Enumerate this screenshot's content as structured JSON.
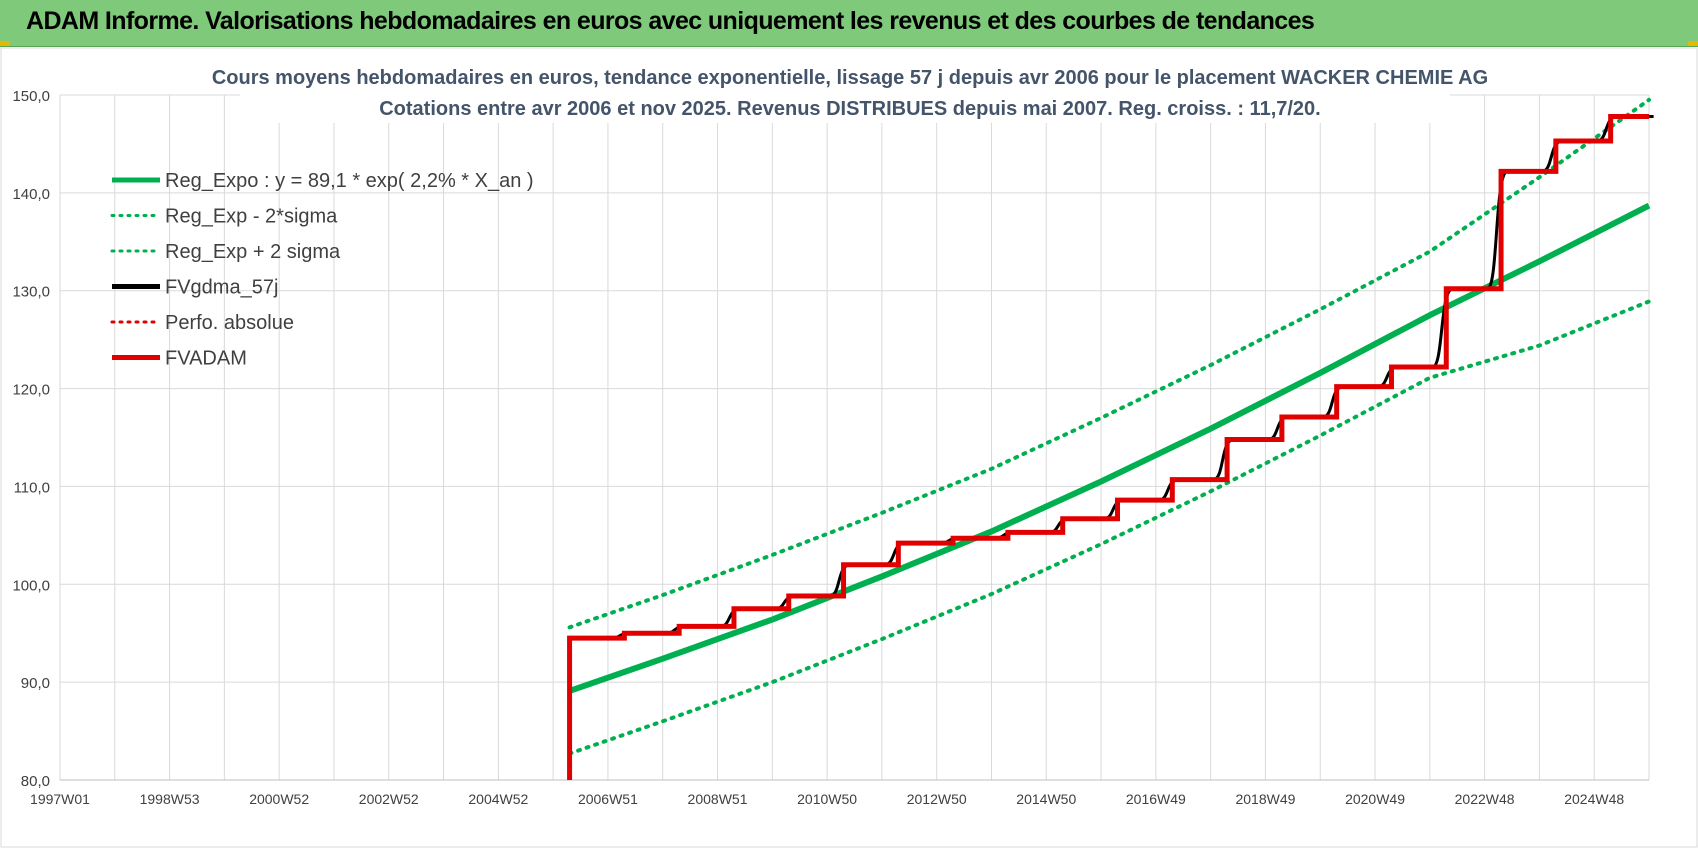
{
  "banner": {
    "title": "ADAM Informe. Valorisations hebdomadaires en euros avec uniquement les revenus et des courbes de tendances",
    "background_color": "#7ec97a"
  },
  "chart_data": {
    "type": "line",
    "title": "Cours moyens hebdomadaires en euros, tendance exponentielle, lissage 57 j depuis avr 2006 pour le placement WACKER CHEMIE AG",
    "subtitle": "Cotations entre avr 2006 et nov 2025. Revenus DISTRIBUES depuis mai 2007. Reg. croiss. : 11,7/20.",
    "xlabel": "",
    "ylabel": "",
    "ylim": [
      80,
      150
    ],
    "xlim": [
      1997.0,
      2026.0
    ],
    "grid": true,
    "legend_position": "top-left",
    "y_ticks": [
      "80,0",
      "90,0",
      "100,0",
      "110,0",
      "120,0",
      "130,0",
      "140,0",
      "150,0"
    ],
    "x_ticks": [
      {
        "label": "1997W01",
        "x": 1997.0
      },
      {
        "label": "1998W53",
        "x": 1999.0
      },
      {
        "label": "2000W52",
        "x": 2001.0
      },
      {
        "label": "2002W52",
        "x": 2003.0
      },
      {
        "label": "2004W52",
        "x": 2005.0
      },
      {
        "label": "2006W51",
        "x": 2007.0
      },
      {
        "label": "2008W51",
        "x": 2009.0
      },
      {
        "label": "2010W50",
        "x": 2011.0
      },
      {
        "label": "2012W50",
        "x": 2013.0
      },
      {
        "label": "2014W50",
        "x": 2015.0
      },
      {
        "label": "2016W49",
        "x": 2017.0
      },
      {
        "label": "2018W49",
        "x": 2019.0
      },
      {
        "label": "2020W49",
        "x": 2021.0
      },
      {
        "label": "2022W48",
        "x": 2023.0
      },
      {
        "label": "2024W48",
        "x": 2025.0
      }
    ],
    "series": [
      {
        "name": "Reg_Expo : y = 89,1 * exp( 2,2% *  X_an )",
        "color": "#00b050",
        "style": "solid",
        "width": 6,
        "x": [
          2006.3,
          2008.0,
          2010.0,
          2012.0,
          2014.0,
          2016.0,
          2018.0,
          2020.0,
          2022.0,
          2024.0,
          2026.0
        ],
        "y": [
          89.1,
          92.4,
          96.4,
          100.8,
          105.4,
          110.5,
          115.9,
          121.6,
          127.5,
          133.0,
          138.7
        ]
      },
      {
        "name": "Reg_Exp - 2*sigma",
        "color": "#00b050",
        "style": "dotted",
        "width": 4,
        "x": [
          2006.3,
          2008.0,
          2010.0,
          2012.0,
          2014.0,
          2016.0,
          2018.0,
          2020.0,
          2022.0,
          2024.0,
          2026.0
        ],
        "y": [
          82.7,
          86.0,
          90.0,
          94.4,
          99.0,
          104.1,
          109.5,
          115.2,
          121.1,
          124.4,
          128.9
        ]
      },
      {
        "name": "Reg_Exp + 2 sigma",
        "color": "#00b050",
        "style": "dotted",
        "width": 4,
        "x": [
          2006.3,
          2008.0,
          2010.0,
          2012.0,
          2014.0,
          2016.0,
          2018.0,
          2020.0,
          2022.0,
          2024.0,
          2026.0
        ],
        "y": [
          95.6,
          98.9,
          103.0,
          107.3,
          111.8,
          117.0,
          122.4,
          128.1,
          134.0,
          141.6,
          149.5
        ]
      },
      {
        "name": "FVgdma_57j",
        "color": "#000000",
        "style": "smooth-step",
        "width": 3,
        "x": [
          2006.3,
          2006.3,
          2007.3,
          2008.3,
          2009.3,
          2010.3,
          2011.3,
          2012.3,
          2013.3,
          2014.3,
          2015.3,
          2016.3,
          2017.3,
          2018.3,
          2019.3,
          2020.3,
          2021.3,
          2022.3,
          2023.3,
          2024.3,
          2025.3,
          2026.0
        ],
        "y": [
          80.0,
          94.5,
          95.0,
          95.7,
          97.5,
          98.8,
          102.0,
          104.2,
          104.7,
          105.3,
          106.7,
          108.6,
          110.7,
          114.8,
          117.1,
          120.2,
          122.2,
          130.2,
          142.2,
          145.3,
          147.8,
          147.8
        ]
      },
      {
        "name": "Perfo. absolue",
        "color": "#e00000",
        "style": "dotted",
        "width": 3,
        "x": [],
        "y": []
      },
      {
        "name": "FVADAM",
        "color": "#e00000",
        "style": "step",
        "width": 5,
        "x": [
          2006.3,
          2006.3,
          2007.3,
          2008.3,
          2009.3,
          2010.3,
          2011.3,
          2012.3,
          2013.3,
          2014.3,
          2015.3,
          2016.3,
          2017.3,
          2018.3,
          2019.3,
          2020.3,
          2021.3,
          2022.3,
          2023.3,
          2024.3,
          2025.3,
          2026.0
        ],
        "y": [
          80.0,
          94.5,
          95.0,
          95.7,
          97.5,
          98.8,
          102.0,
          104.2,
          104.7,
          105.3,
          106.7,
          108.6,
          110.7,
          114.8,
          117.1,
          120.2,
          122.2,
          130.2,
          142.2,
          145.3,
          147.8,
          147.8
        ]
      }
    ]
  }
}
